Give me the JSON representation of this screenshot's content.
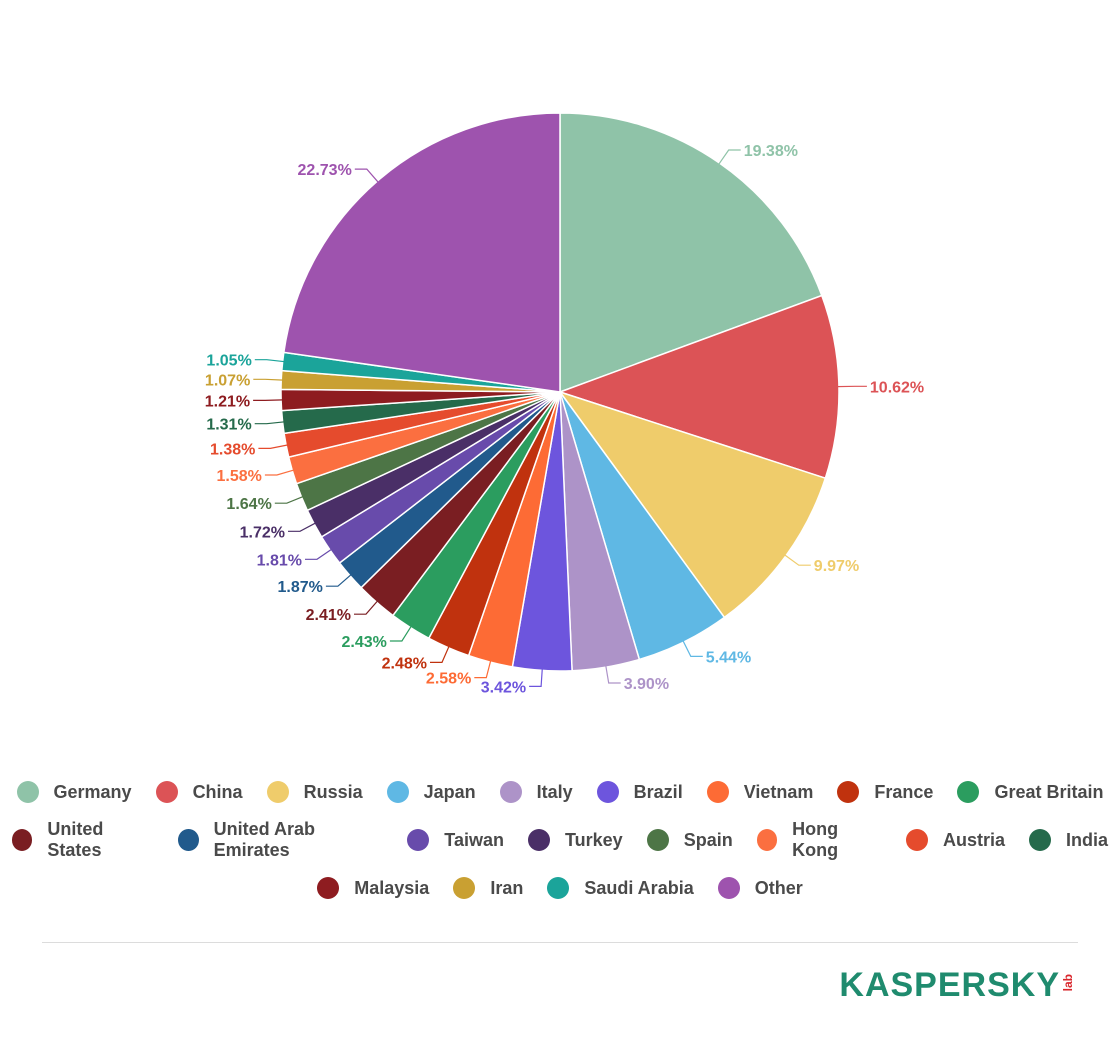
{
  "chart_data": {
    "type": "pie",
    "title": "",
    "legend_position": "bottom",
    "slices": [
      {
        "label": "Germany",
        "value": 19.38,
        "text": "19.38%",
        "color": "#8fc3a8"
      },
      {
        "label": "China",
        "value": 10.62,
        "text": "10.62%",
        "color": "#dc5356"
      },
      {
        "label": "Russia",
        "value": 9.97,
        "text": "9.97%",
        "color": "#efcc6b"
      },
      {
        "label": "Japan",
        "value": 5.44,
        "text": "5.44%",
        "color": "#5fb8e4"
      },
      {
        "label": "Italy",
        "value": 3.9,
        "text": "3.90%",
        "color": "#ad93c8"
      },
      {
        "label": "Brazil",
        "value": 3.42,
        "text": "3.42%",
        "color": "#6d55dd"
      },
      {
        "label": "Vietnam",
        "value": 2.58,
        "text": "2.58%",
        "color": "#fd6b35"
      },
      {
        "label": "France",
        "value": 2.48,
        "text": "2.48%",
        "color": "#c0320e"
      },
      {
        "label": "Great Britain",
        "value": 2.43,
        "text": "2.43%",
        "color": "#2b9d5f"
      },
      {
        "label": "United States",
        "value": 2.41,
        "text": "2.41%",
        "color": "#7a1e22"
      },
      {
        "label": "United Arab Emirates",
        "value": 1.87,
        "text": "1.87%",
        "color": "#215a8c"
      },
      {
        "label": "Taiwan",
        "value": 1.81,
        "text": "1.81%",
        "color": "#684bab"
      },
      {
        "label": "Turkey",
        "value": 1.72,
        "text": "1.72%",
        "color": "#4a2f67"
      },
      {
        "label": "Spain",
        "value": 1.64,
        "text": "1.64%",
        "color": "#4d7546"
      },
      {
        "label": "Hong Kong",
        "value": 1.58,
        "text": "1.58%",
        "color": "#fb6f40"
      },
      {
        "label": "Austria",
        "value": 1.38,
        "text": "1.38%",
        "color": "#e54b2d"
      },
      {
        "label": "India",
        "value": 1.31,
        "text": "1.31%",
        "color": "#256a4b"
      },
      {
        "label": "Malaysia",
        "value": 1.21,
        "text": "1.21%",
        "color": "#8e1c20"
      },
      {
        "label": "Iran",
        "value": 1.07,
        "text": "1.07%",
        "color": "#c9a032"
      },
      {
        "label": "Saudi Arabia",
        "value": 1.05,
        "text": "1.05%",
        "color": "#1ba49a"
      },
      {
        "label": "Other",
        "value": 22.73,
        "text": "22.73%",
        "color": "#9e53ae"
      }
    ]
  },
  "legend": {
    "rows": [
      [
        0,
        1,
        2,
        3,
        4,
        5,
        6,
        7,
        8
      ],
      [
        9,
        10,
        11,
        12,
        13,
        14,
        15,
        16
      ],
      [
        17,
        18,
        19,
        20
      ]
    ]
  },
  "brand": {
    "word": "KASPERSKY",
    "sub": "lab",
    "color": "#1f8b6e",
    "sub_color": "#d9262c"
  }
}
